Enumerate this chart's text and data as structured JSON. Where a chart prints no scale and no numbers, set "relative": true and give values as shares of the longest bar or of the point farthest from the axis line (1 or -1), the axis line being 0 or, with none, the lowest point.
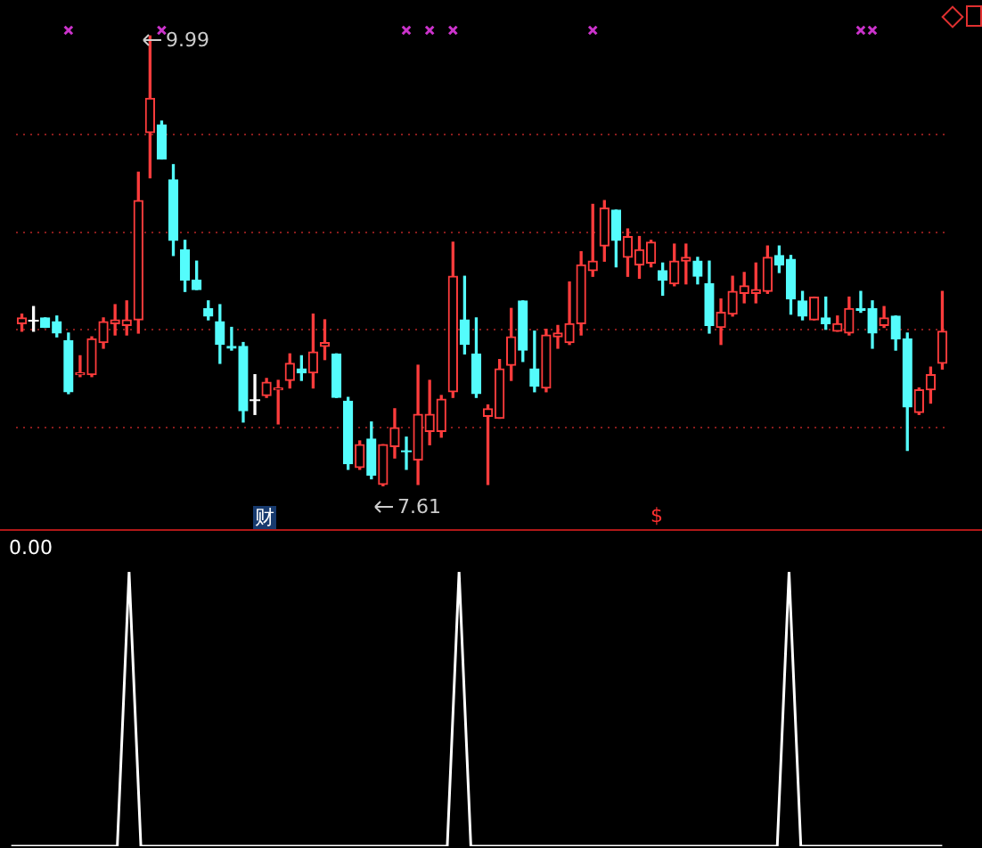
{
  "chart_data": [
    {
      "type": "candlestick",
      "categories": [
        null,
        null,
        null,
        null,
        null,
        null,
        null,
        null,
        null,
        null,
        null,
        null,
        null,
        null,
        null,
        null,
        null,
        null,
        null,
        null,
        null,
        null,
        null,
        null,
        null,
        null,
        null,
        null,
        null,
        null,
        null,
        null,
        null,
        null,
        null,
        null,
        null,
        null,
        null,
        null,
        null,
        null,
        null,
        null,
        null,
        null,
        null,
        null,
        null,
        null,
        null,
        null,
        null,
        null,
        null,
        null,
        null,
        null,
        null,
        null,
        null,
        null,
        null,
        null,
        null,
        null,
        null,
        null,
        null,
        null,
        null,
        null,
        null,
        null,
        null,
        null,
        null,
        null,
        null,
        null
      ],
      "ohlc": [
        [
          8.47,
          8.52,
          8.43,
          8.5
        ],
        [
          8.49,
          8.56,
          8.43,
          8.49
        ],
        [
          8.5,
          8.5,
          8.45,
          8.45
        ],
        [
          8.48,
          8.51,
          8.4,
          8.42
        ],
        [
          8.38,
          8.42,
          8.1,
          8.11
        ],
        [
          8.2,
          8.3,
          8.19,
          8.21
        ],
        [
          8.2,
          8.4,
          8.19,
          8.39
        ],
        [
          8.37,
          8.5,
          8.34,
          8.48
        ],
        [
          8.47,
          8.57,
          8.41,
          8.49
        ],
        [
          8.46,
          8.59,
          8.41,
          8.49
        ],
        [
          8.49,
          9.27,
          8.42,
          9.12
        ],
        [
          9.48,
          9.99,
          9.24,
          9.66
        ],
        [
          9.52,
          9.54,
          9.34,
          9.34
        ],
        [
          9.23,
          9.31,
          8.83,
          8.91
        ],
        [
          8.86,
          8.91,
          8.64,
          8.7
        ],
        [
          8.7,
          8.8,
          8.65,
          8.65
        ],
        [
          8.55,
          8.59,
          8.49,
          8.51
        ],
        [
          8.48,
          8.57,
          8.26,
          8.36
        ],
        [
          8.35,
          8.45,
          8.33,
          8.34
        ],
        [
          8.35,
          8.37,
          7.95,
          8.01
        ],
        [
          8.07,
          8.2,
          7.99,
          8.07
        ],
        [
          8.09,
          8.18,
          8.08,
          8.16
        ],
        [
          8.12,
          8.17,
          7.94,
          8.13
        ],
        [
          8.17,
          8.31,
          8.13,
          8.26
        ],
        [
          8.23,
          8.3,
          8.17,
          8.21
        ],
        [
          8.21,
          8.52,
          8.13,
          8.32
        ],
        [
          8.35,
          8.49,
          8.28,
          8.37
        ],
        [
          8.31,
          8.31,
          8.08,
          8.08
        ],
        [
          8.06,
          8.08,
          7.7,
          7.73
        ],
        [
          7.71,
          7.85,
          7.7,
          7.83
        ],
        [
          7.86,
          7.95,
          7.65,
          7.67
        ],
        [
          7.62,
          7.83,
          7.61,
          7.83
        ],
        [
          7.82,
          8.02,
          7.76,
          7.92
        ],
        [
          7.8,
          7.87,
          7.7,
          7.8
        ],
        [
          7.75,
          8.25,
          7.62,
          7.99
        ],
        [
          7.9,
          8.17,
          7.83,
          7.99
        ],
        [
          7.9,
          8.09,
          7.87,
          8.07
        ],
        [
          8.11,
          8.9,
          8.08,
          8.72
        ],
        [
          8.49,
          8.72,
          8.31,
          8.36
        ],
        [
          8.31,
          8.5,
          8.08,
          8.1
        ],
        [
          7.98,
          8.04,
          7.62,
          8.02
        ],
        [
          7.97,
          8.28,
          7.97,
          8.23
        ],
        [
          8.25,
          8.55,
          8.17,
          8.4
        ],
        [
          8.59,
          8.59,
          8.27,
          8.33
        ],
        [
          8.23,
          8.43,
          8.11,
          8.14
        ],
        [
          8.13,
          8.44,
          8.11,
          8.41
        ],
        [
          8.4,
          8.46,
          8.34,
          8.42
        ],
        [
          8.37,
          8.69,
          8.36,
          8.47
        ],
        [
          8.47,
          8.85,
          8.41,
          8.78
        ],
        [
          8.75,
          9.1,
          8.72,
          8.8
        ],
        [
          8.88,
          9.12,
          8.8,
          9.08
        ],
        [
          9.07,
          9.07,
          8.77,
          8.91
        ],
        [
          8.82,
          8.97,
          8.72,
          8.93
        ],
        [
          8.78,
          8.93,
          8.71,
          8.86
        ],
        [
          8.79,
          8.91,
          8.77,
          8.9
        ],
        [
          8.75,
          8.79,
          8.62,
          8.7
        ],
        [
          8.68,
          8.89,
          8.67,
          8.8
        ],
        [
          8.8,
          8.89,
          8.68,
          8.82
        ],
        [
          8.8,
          8.82,
          8.68,
          8.72
        ],
        [
          8.68,
          8.8,
          8.42,
          8.46
        ],
        [
          8.45,
          8.6,
          8.36,
          8.53
        ],
        [
          8.52,
          8.72,
          8.51,
          8.64
        ],
        [
          8.63,
          8.74,
          8.58,
          8.67
        ],
        [
          8.63,
          8.79,
          8.58,
          8.65
        ],
        [
          8.64,
          8.88,
          8.63,
          8.82
        ],
        [
          8.83,
          8.88,
          8.74,
          8.78
        ],
        [
          8.81,
          8.83,
          8.52,
          8.6
        ],
        [
          8.59,
          8.64,
          8.49,
          8.51
        ],
        [
          8.49,
          8.61,
          8.49,
          8.61
        ],
        [
          8.5,
          8.61,
          8.44,
          8.47
        ],
        [
          8.43,
          8.51,
          8.43,
          8.47
        ],
        [
          8.42,
          8.61,
          8.41,
          8.55
        ],
        [
          8.55,
          8.64,
          8.53,
          8.54
        ],
        [
          8.55,
          8.59,
          8.34,
          8.42
        ],
        [
          8.46,
          8.56,
          8.45,
          8.5
        ],
        [
          8.51,
          8.51,
          8.33,
          8.39
        ],
        [
          8.39,
          8.42,
          7.8,
          8.03
        ],
        [
          8.0,
          8.13,
          7.99,
          8.12
        ],
        [
          8.12,
          8.24,
          8.05,
          8.2
        ],
        [
          8.26,
          8.64,
          8.23,
          8.43
        ]
      ],
      "colors": [
        "#ff3c3c",
        "#ffffff",
        "#54fcfc",
        "#54fcfc",
        "#54fcfc",
        "#ff3c3c",
        "#ff3c3c",
        "#ff3c3c",
        "#ff3c3c",
        "#ff3c3c",
        "#ff3c3c",
        "#ff3c3c",
        "#54fcfc",
        "#54fcfc",
        "#54fcfc",
        "#54fcfc",
        "#54fcfc",
        "#54fcfc",
        "#54fcfc",
        "#54fcfc",
        "#ffffff",
        "#ff3c3c",
        "#ff3c3c",
        "#ff3c3c",
        "#54fcfc",
        "#ff3c3c",
        "#ff3c3c",
        "#54fcfc",
        "#54fcfc",
        "#ff3c3c",
        "#54fcfc",
        "#ff3c3c",
        "#ff3c3c",
        "#54fcfc",
        "#ff3c3c",
        "#ff3c3c",
        "#ff3c3c",
        "#ff3c3c",
        "#54fcfc",
        "#54fcfc",
        "#ff3c3c",
        "#ff3c3c",
        "#ff3c3c",
        "#54fcfc",
        "#54fcfc",
        "#ff3c3c",
        "#ff3c3c",
        "#ff3c3c",
        "#ff3c3c",
        "#ff3c3c",
        "#ff3c3c",
        "#54fcfc",
        "#ff3c3c",
        "#ff3c3c",
        "#ff3c3c",
        "#54fcfc",
        "#ff3c3c",
        "#ff3c3c",
        "#54fcfc",
        "#54fcfc",
        "#ff3c3c",
        "#ff3c3c",
        "#ff3c3c",
        "#ff3c3c",
        "#ff3c3c",
        "#54fcfc",
        "#54fcfc",
        "#54fcfc",
        "#ff3c3c",
        "#54fcfc",
        "#ff3c3c",
        "#ff3c3c",
        "#54fcfc",
        "#54fcfc",
        "#ff3c3c",
        "#54fcfc",
        "#54fcfc",
        "#ff3c3c",
        "#ff3c3c",
        "#ff3c3c"
      ],
      "series": [
        {
          "type": "scatter",
          "color": "#cc33cc",
          "marker": "cross",
          "values": [
            null,
            null,
            null,
            null,
            10.02,
            null,
            null,
            null,
            null,
            null,
            null,
            null,
            10.02,
            null,
            null,
            null,
            null,
            null,
            null,
            null,
            null,
            null,
            null,
            null,
            null,
            null,
            null,
            null,
            null,
            null,
            null,
            null,
            null,
            10.02,
            null,
            10.02,
            null,
            10.02,
            null,
            null,
            null,
            null,
            null,
            null,
            null,
            null,
            null,
            null,
            null,
            10.02,
            null,
            null,
            null,
            null,
            null,
            null,
            null,
            null,
            null,
            null,
            null,
            null,
            null,
            null,
            null,
            null,
            null,
            null,
            null,
            null,
            null,
            null,
            10.02,
            10.02,
            null,
            null,
            null,
            null,
            null,
            null
          ]
        }
      ],
      "yticks": [
        {
          "value": 9.47,
          "label": null
        },
        {
          "value": 8.95,
          "label": null
        },
        {
          "value": 8.44,
          "label": null
        },
        {
          "value": 7.92,
          "label": null
        }
      ],
      "grid": "y",
      "legend": false,
      "annotations": [
        "9.99",
        "7.61",
        "财",
        "$"
      ]
    },
    {
      "type": "line",
      "relative": true,
      "categories": [
        null,
        null,
        null,
        null,
        null,
        null,
        null,
        null,
        null,
        null,
        null,
        null,
        null,
        null,
        null,
        null,
        null,
        null,
        null,
        null,
        null,
        null,
        null,
        null,
        null,
        null,
        null,
        null,
        null,
        null,
        null,
        null,
        null,
        null,
        null,
        null,
        null,
        null,
        null,
        null,
        null,
        null,
        null,
        null,
        null,
        null,
        null,
        null,
        null,
        null,
        null,
        null,
        null,
        null,
        null,
        null,
        null,
        null,
        null,
        null,
        null,
        null,
        null,
        null,
        null,
        null,
        null,
        null,
        null,
        null,
        null,
        null,
        null,
        null,
        null,
        null,
        null,
        null,
        null,
        null
      ],
      "series": [
        {
          "color": "#ffffff",
          "values": [
            0,
            0,
            0,
            0,
            0,
            0,
            0,
            0,
            0,
            0,
            1,
            0,
            0,
            0,
            0,
            0,
            0,
            0,
            0,
            0,
            0,
            0,
            0,
            0,
            0,
            0,
            0,
            0,
            0,
            0,
            0,
            0,
            0,
            0,
            0,
            0,
            0,
            0,
            1,
            0,
            0,
            0,
            0,
            0,
            0,
            0,
            0,
            0,
            0,
            0,
            0,
            0,
            0,
            0,
            0,
            0,
            0,
            0,
            0,
            0,
            0,
            0,
            0,
            0,
            0,
            0,
            1,
            0,
            0,
            0,
            0,
            0,
            0,
            0,
            0,
            0,
            0,
            0,
            0,
            0
          ]
        }
      ],
      "legend": false,
      "annotations": [
        "0.00"
      ]
    }
  ]
}
